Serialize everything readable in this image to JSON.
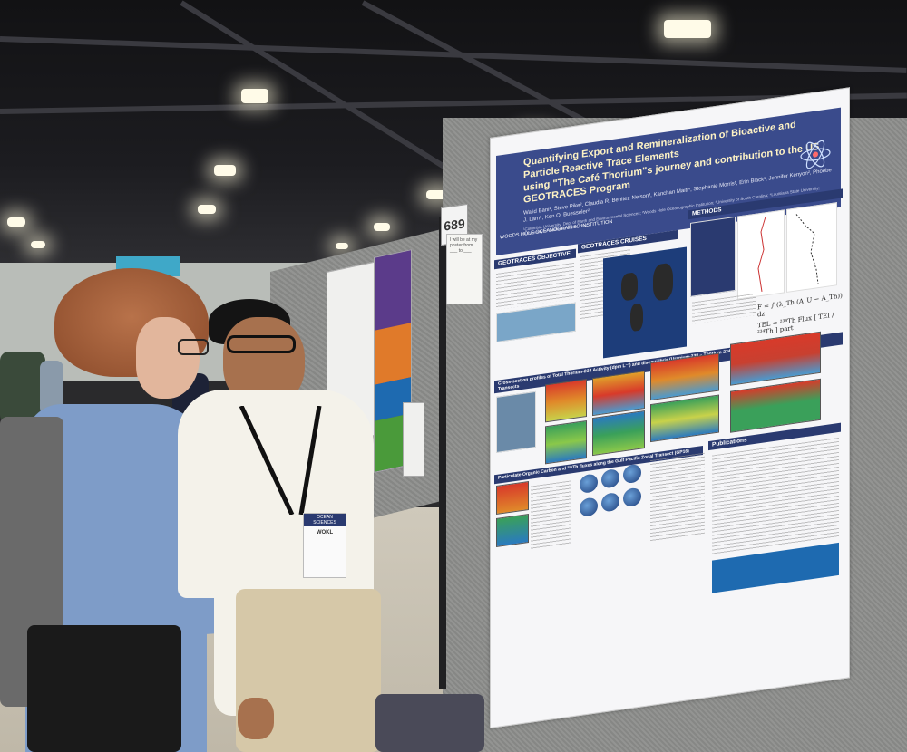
{
  "scene": {
    "description_free": true
  },
  "booth": {
    "number": "689",
    "sign_text": "I will be at my poster from ___ to ___"
  },
  "poster": {
    "title_line1": "Quantifying Export and Remineralization of Bioactive and Particle Reactive Trace Elements",
    "title_line2": "using \"The Café Thorium\"s journey and contribution to the US GEOTRACES Program",
    "authors": "Walid Bani¹, Steve Pike², Claudia R. Benitez-Nelson³, Kanchan Maiti⁴, Stephanie Morris¹, Erin Black¹, Jennifer Kenyon², Phoebe J. Lam⁵, Ken O. Buesseler²",
    "affiliations": "¹Columbia University, Dept of Earth and Environmental Sciences; ²Woods Hole Oceanographic Institution; ³University of South Carolina; ⁴Louisiana State University; ⁵University of California Santa Cruz",
    "institution": "WOODS HOLE OCEANOGRAPHIC INSTITUTION",
    "sections": {
      "objective": "GEOTRACES OBJECTIVE",
      "cruises": "GEOTRACES CRUISES",
      "methods": "METHODS",
      "distribution": "Cross-section profiles of Total Thorium-234 Activity (dpm L⁻¹) and disequilibria (Uranium-238 – Thorium-234) (dpm L⁻¹) along selected US Geotraces Transects",
      "carbon": "Particulate Organic Carbon and ²³⁴Th fluxes along the Gulf Pacific Zonal Transect (GP16)",
      "publications": "Publications"
    },
    "equation": "TEL = ²³⁴Th Flux [ TEI / ²³⁴Th ] part",
    "flux_equation": "F = ∫ (λ_Th (A_U − A_Th)) dz"
  },
  "badge": {
    "event": "OCEAN SCIENCES",
    "name": "WOKL"
  },
  "colors": {
    "poster_header": "#3a4b8c",
    "section_bar": "#2a3a70",
    "publication_box": "#1e6ab0"
  }
}
